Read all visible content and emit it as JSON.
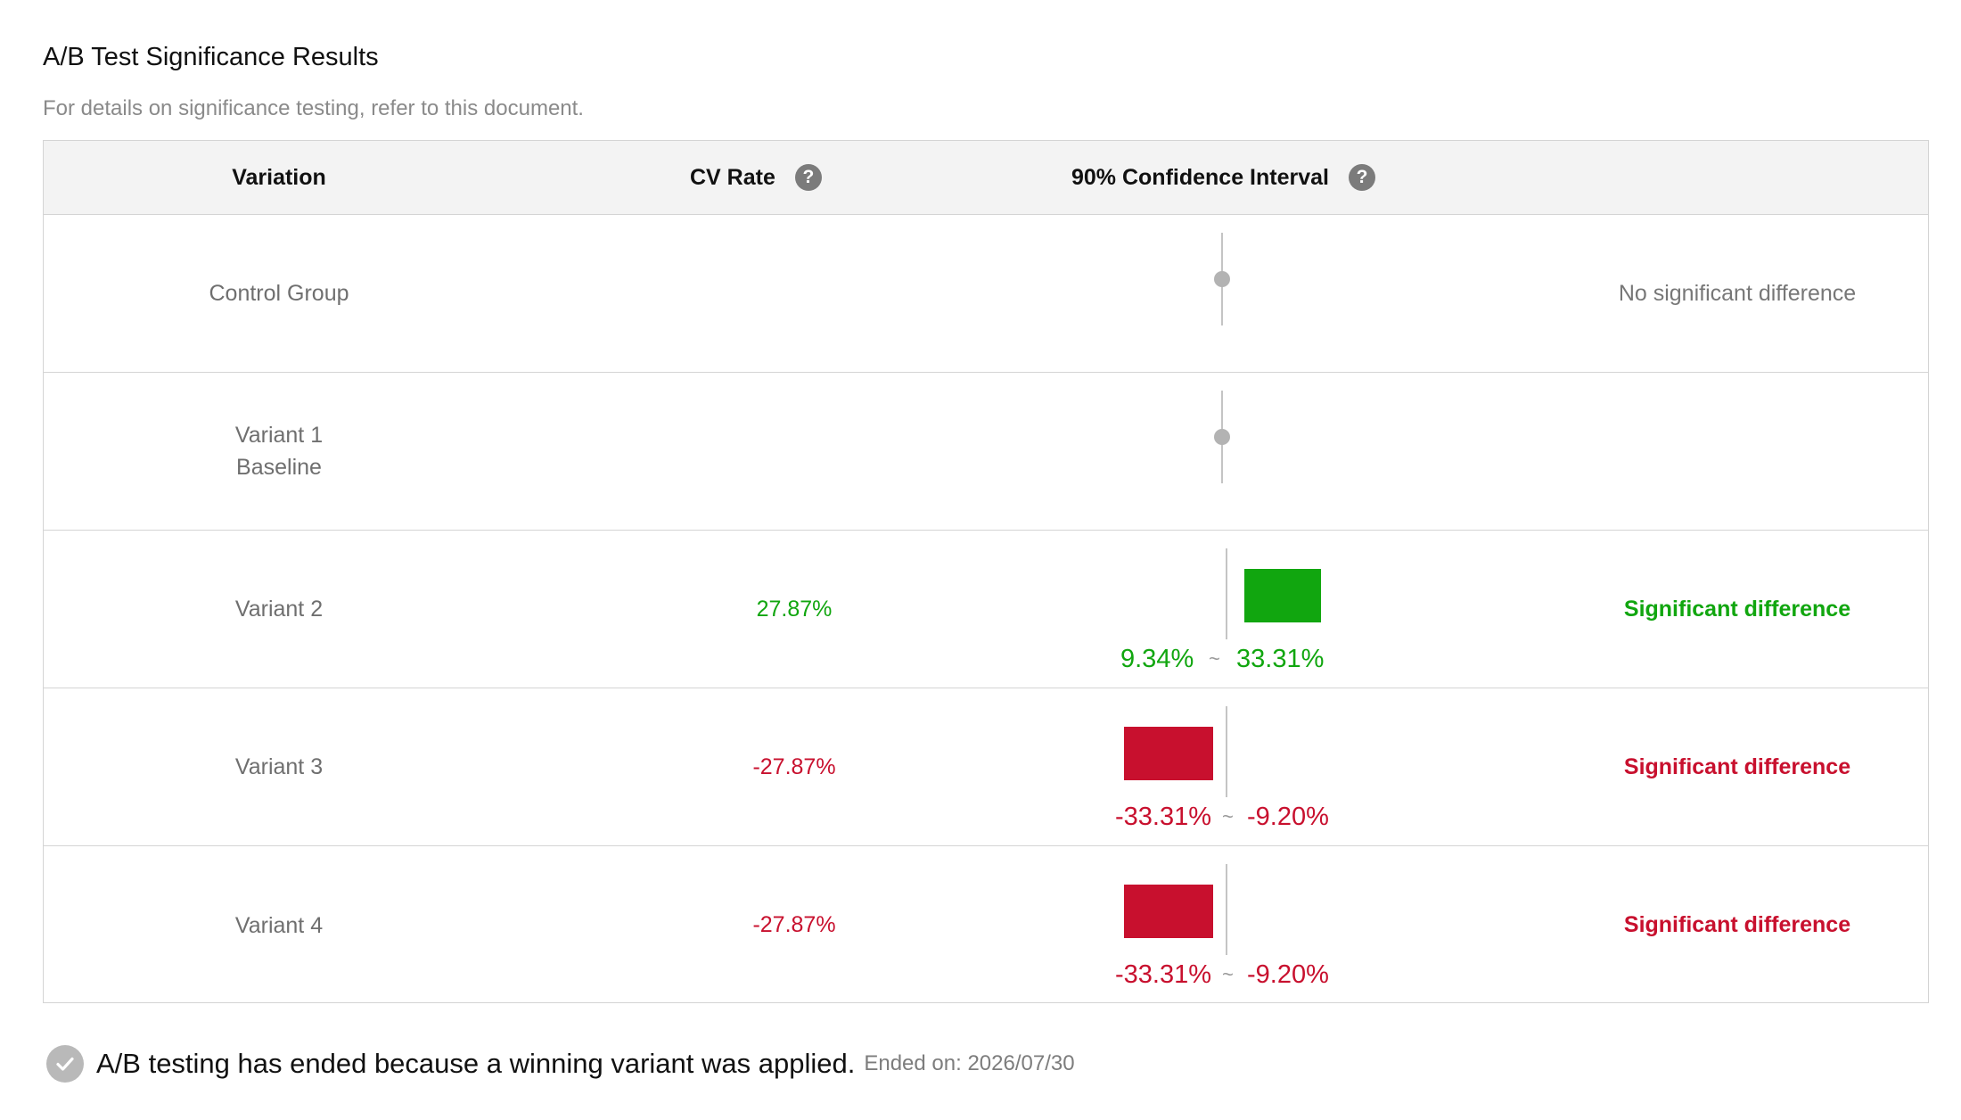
{
  "title": "A/B Test Significance Results",
  "subtitle": "For details on significance testing, refer to this document.",
  "headers": {
    "variation": "Variation",
    "cv_rate": "CV Rate",
    "confidence_interval": "90% Confidence Interval",
    "help_glyph": "?"
  },
  "rows": [
    {
      "name": "Control Group",
      "name2": "",
      "cv_rate": "",
      "ci_low": "",
      "ci_high": "",
      "ci_separator": "",
      "status": "No significant difference",
      "ci_type": "neutral"
    },
    {
      "name": "Variant 1",
      "name2": "Baseline",
      "cv_rate": "",
      "ci_low": "",
      "ci_high": "",
      "ci_separator": "",
      "status": "",
      "ci_type": "neutral"
    },
    {
      "name": "Variant 2",
      "name2": "",
      "cv_rate": "27.87%",
      "ci_low": "9.34%",
      "ci_high": "33.31%",
      "ci_separator": "~",
      "status": "Significant difference",
      "ci_type": "positive"
    },
    {
      "name": "Variant 3",
      "name2": "",
      "cv_rate": "-27.87%",
      "ci_low": "-33.31%",
      "ci_high": "-9.20%",
      "ci_separator": "~",
      "status": "Significant difference",
      "ci_type": "negative"
    },
    {
      "name": "Variant 4",
      "name2": "",
      "cv_rate": "-27.87%",
      "ci_low": "-33.31%",
      "ci_high": "-9.20%",
      "ci_separator": "~",
      "status": "Significant difference",
      "ci_type": "negative"
    }
  ],
  "footer": {
    "message": "A/B testing has ended because a winning variant was applied.",
    "ended": "Ended on: 2026/07/30"
  },
  "colors": {
    "positive": "#11a60f",
    "negative": "#c8102e",
    "neutral": "#b3b3b3"
  }
}
